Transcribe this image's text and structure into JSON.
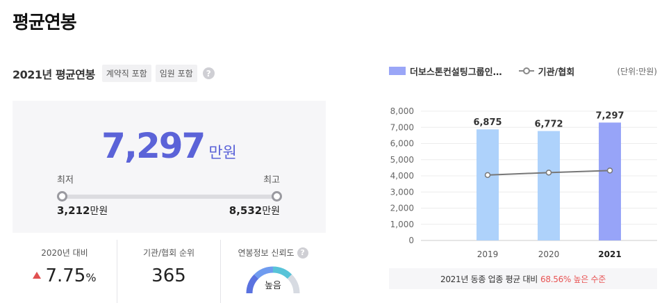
{
  "page_title": "평균연봉",
  "summary": {
    "year_title": "2021년 평균연봉",
    "tags": [
      "계약직 포함",
      "임원 포함"
    ],
    "help_glyph": "?",
    "average_value": "7,297",
    "average_unit": "만원",
    "min_label": "최저",
    "max_label": "최고",
    "min_value": "3,212",
    "max_value": "8,532",
    "value_unit": "만원"
  },
  "stats": {
    "yoy_label": "2020년 대비",
    "yoy_value": "7.75",
    "yoy_unit": "%",
    "rank_label": "기관/협회 순위",
    "rank_value": "365",
    "reliability_label": "연봉정보 신뢰도",
    "reliability_value": "높음"
  },
  "legend": {
    "bar_series": "더보스톤컨설팅그룹인…",
    "line_series": "기관/협회",
    "unit": "(단위:만원)"
  },
  "chart_data": {
    "type": "bar",
    "categories": [
      "2019",
      "2020",
      "2021"
    ],
    "series": [
      {
        "name": "더보스톤컨설팅그룹인…",
        "values": [
          6875,
          6772,
          7297
        ],
        "labels": [
          "6,875",
          "6,772",
          "7,297"
        ]
      },
      {
        "name": "기관/협회",
        "type": "line",
        "values": [
          4050,
          4200,
          4330
        ]
      }
    ],
    "yticks": [
      "8,000",
      "7,000",
      "6,000",
      "5,000",
      "4,000",
      "3,000",
      "2,000",
      "1,000",
      "0"
    ],
    "ylim": [
      0,
      8000
    ],
    "bar_colors": [
      "#aed2fb",
      "#aed2fb",
      "#97a4f8"
    ],
    "line_color": "#777777"
  },
  "note": {
    "text": "2021년 동종 업종 평균 대비",
    "highlight": "68.56% 높은 수준"
  },
  "colors": {
    "accent": "#5b63d8",
    "up": "#e05050",
    "highlight": "#e85353"
  }
}
